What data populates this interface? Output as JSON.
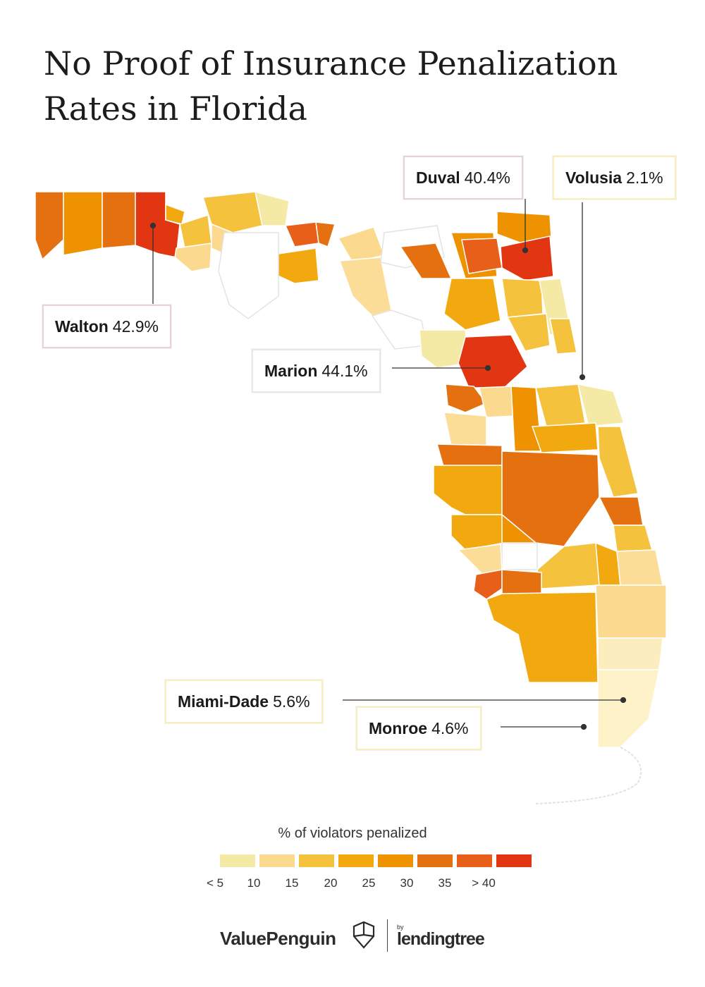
{
  "title": {
    "line1": "No Proof of Insurance Penalization",
    "line2": "Rates in Florida"
  },
  "callouts": {
    "duval": {
      "county": "Duval",
      "value": "40.4%"
    },
    "volusia": {
      "county": "Volusia",
      "value": "2.1%"
    },
    "walton": {
      "county": "Walton",
      "value": "42.9%"
    },
    "marion": {
      "county": "Marion",
      "value": "44.1%"
    },
    "miami_dade": {
      "county": "Miami-Dade",
      "value": "5.6%"
    },
    "monroe": {
      "county": "Monroe",
      "value": "4.6%"
    }
  },
  "legend": {
    "title": "% of violators penalized",
    "ticks": [
      "< 5",
      "10",
      "15",
      "20",
      "25",
      "30",
      "35",
      "> 40"
    ],
    "colors": [
      "#f5e9a6",
      "#fbd98f",
      "#f4c23c",
      "#f2a90f",
      "#ee9200",
      "#e4700f",
      "#e85f1a",
      "#e23512"
    ]
  },
  "colors": {
    "no_data": "#ffffff",
    "county_border": "#e3e3e3",
    "leader_line": "#333333"
  },
  "footer": {
    "brand": "ValuePenguin",
    "by": "by",
    "partner": "lendingtree"
  }
}
